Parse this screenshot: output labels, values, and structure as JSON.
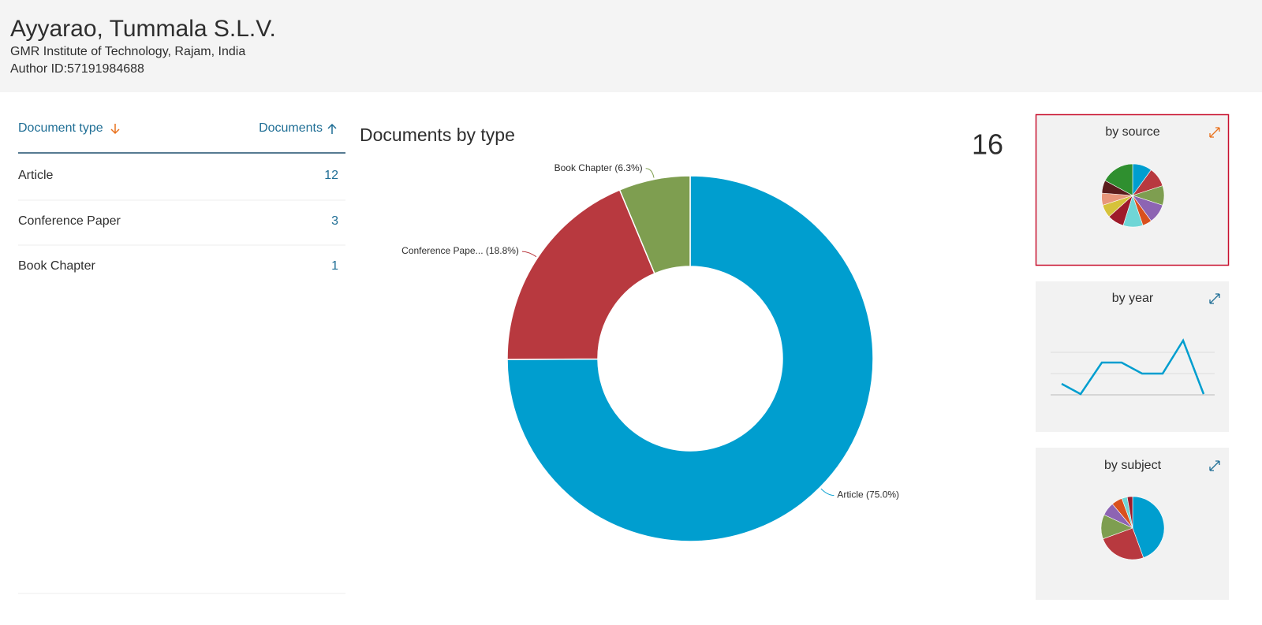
{
  "header": {
    "name": "Ayyarao, Tummala S.L.V.",
    "affiliation": "GMR Institute of Technology, Rajam, India",
    "author_id": "Author ID:57191984688"
  },
  "table": {
    "headers": [
      "Document type",
      "Documents"
    ],
    "rows": [
      [
        "Article",
        12
      ],
      [
        "Conference Paper",
        3
      ],
      [
        "Book Chapter",
        1
      ]
    ]
  },
  "total": 16,
  "chart_data": {
    "type": "donut",
    "title": "Documents by type",
    "categories": [
      "Article",
      "Conference Pape...",
      "Book Chapter"
    ],
    "values": [
      75.0,
      18.8,
      6.3
    ],
    "value_labels": [
      "(75.0%)",
      "(18.8%)",
      "(6.3%)"
    ],
    "colors": [
      "#009ecf",
      "#b8393f",
      "#7e9e50"
    ]
  },
  "thumbnails": [
    "by source",
    "by year",
    "by subject"
  ]
}
